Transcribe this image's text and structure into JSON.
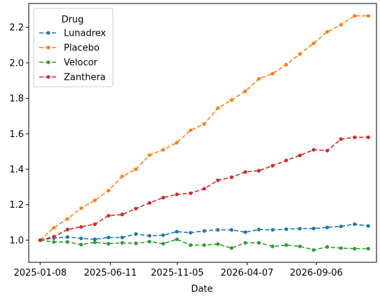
{
  "chart_data": {
    "type": "line",
    "xlabel": "Date",
    "ylabel": "",
    "x_ticks": [
      "2025-01-08",
      "2025-06-11",
      "2025-11-05",
      "2026-04-07",
      "2026-09-06"
    ],
    "y_ticks": [
      "1.0",
      "1.2",
      "1.4",
      "1.6",
      "1.8",
      "2.0",
      "2.2"
    ],
    "ylim": [
      0.875,
      2.335
    ],
    "xlim": [
      "2024-12-14",
      "2027-01-16"
    ],
    "x": [
      "2025-01-08",
      "2025-02-07",
      "2025-03-09",
      "2025-04-08",
      "2025-05-08",
      "2025-06-07",
      "2025-07-07",
      "2025-08-06",
      "2025-09-05",
      "2025-10-05",
      "2025-11-04",
      "2025-12-04",
      "2026-01-03",
      "2026-02-02",
      "2026-03-04",
      "2026-04-03",
      "2026-05-03",
      "2026-06-02",
      "2026-07-02",
      "2026-08-01",
      "2026-08-31",
      "2026-09-30",
      "2026-10-30",
      "2026-11-29",
      "2026-12-29"
    ],
    "legend": {
      "title": "Drug",
      "position": "top-left"
    },
    "grid": false,
    "series": [
      {
        "name": "Lunadrex",
        "color": "#1f77b4",
        "values": [
          1.0,
          1.012,
          1.018,
          1.01,
          1.005,
          1.015,
          1.015,
          1.035,
          1.025,
          1.028,
          1.048,
          1.042,
          1.052,
          1.058,
          1.058,
          1.045,
          1.06,
          1.058,
          1.062,
          1.065,
          1.066,
          1.072,
          1.078,
          1.09,
          1.08
        ]
      },
      {
        "name": "Placebo",
        "color": "#ff7f0e",
        "values": [
          1.0,
          1.07,
          1.12,
          1.18,
          1.225,
          1.28,
          1.36,
          1.4,
          1.48,
          1.51,
          1.55,
          1.62,
          1.655,
          1.745,
          1.79,
          1.84,
          1.91,
          1.94,
          1.99,
          2.05,
          2.11,
          2.175,
          2.215,
          2.265,
          2.265
        ]
      },
      {
        "name": "Velocor",
        "color": "#2ca02c",
        "values": [
          1.0,
          0.99,
          0.99,
          0.975,
          0.988,
          0.98,
          0.985,
          0.982,
          0.992,
          0.98,
          1.005,
          0.972,
          0.972,
          0.978,
          0.955,
          0.985,
          0.985,
          0.965,
          0.972,
          0.965,
          0.945,
          0.962,
          0.955,
          0.952,
          0.952
        ]
      },
      {
        "name": "Zanthera",
        "color": "#d62728",
        "values": [
          1.0,
          1.02,
          1.06,
          1.075,
          1.09,
          1.138,
          1.145,
          1.178,
          1.21,
          1.24,
          1.258,
          1.265,
          1.29,
          1.338,
          1.355,
          1.385,
          1.392,
          1.42,
          1.45,
          1.478,
          1.51,
          1.505,
          1.57,
          1.58,
          1.58
        ]
      }
    ]
  }
}
